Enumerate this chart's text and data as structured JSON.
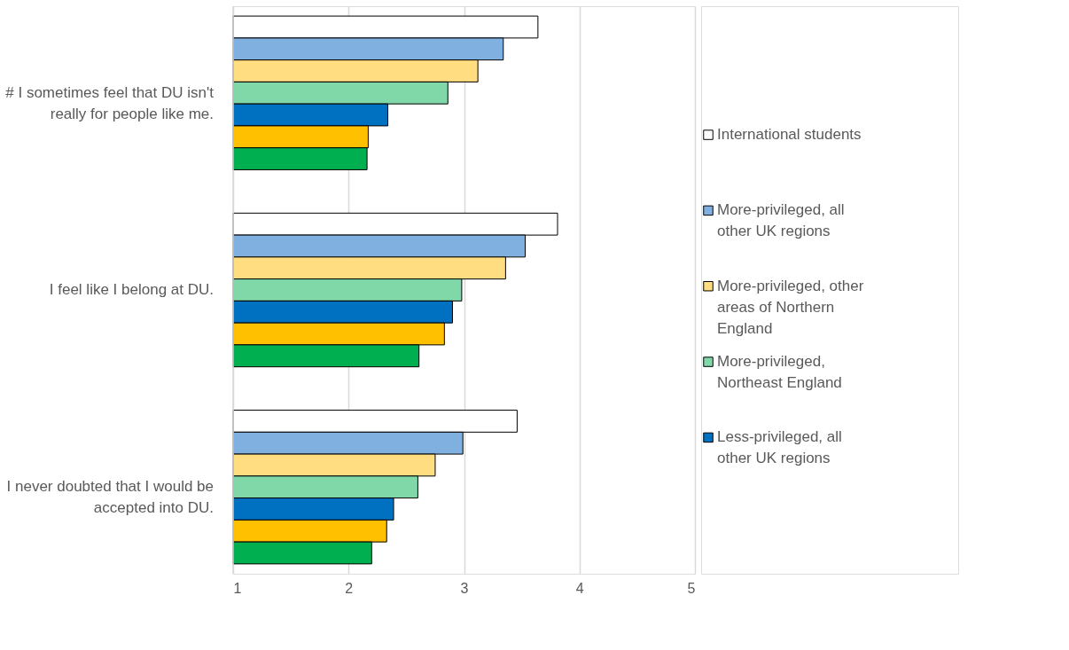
{
  "chart_data": {
    "type": "bar",
    "orientation": "horizontal",
    "categories": [
      "# I sometimes feel that DU isn't really for people like me.",
      "I feel like I belong at DU.",
      "I never doubted that I would be accepted into DU."
    ],
    "series": [
      {
        "name": "International students",
        "color": "#ffffff",
        "values": [
          3.64,
          3.81,
          3.46
        ]
      },
      {
        "name": "More-privileged, all other UK regions",
        "color": "#7fb0e0",
        "values": [
          3.34,
          3.53,
          2.99
        ]
      },
      {
        "name": "More-privileged, other areas of Northern England",
        "color": "#ffdd80",
        "values": [
          3.12,
          3.36,
          2.75
        ]
      },
      {
        "name": "More-privileged, Northeast England",
        "color": "#80d8a8",
        "values": [
          2.86,
          2.98,
          2.6
        ]
      },
      {
        "name": "Less-privileged, all other UK regions",
        "color": "#0070c0",
        "values": [
          2.34,
          2.9,
          2.39
        ]
      },
      {
        "color": "#ffc000",
        "values": [
          2.17,
          2.83,
          2.33
        ]
      },
      {
        "color": "#00b050",
        "values": [
          2.16,
          2.61,
          2.2
        ]
      }
    ],
    "xlim": [
      1,
      5
    ],
    "xticks": [
      1,
      2,
      3,
      4,
      5
    ],
    "grid": "x",
    "legend": "right"
  }
}
